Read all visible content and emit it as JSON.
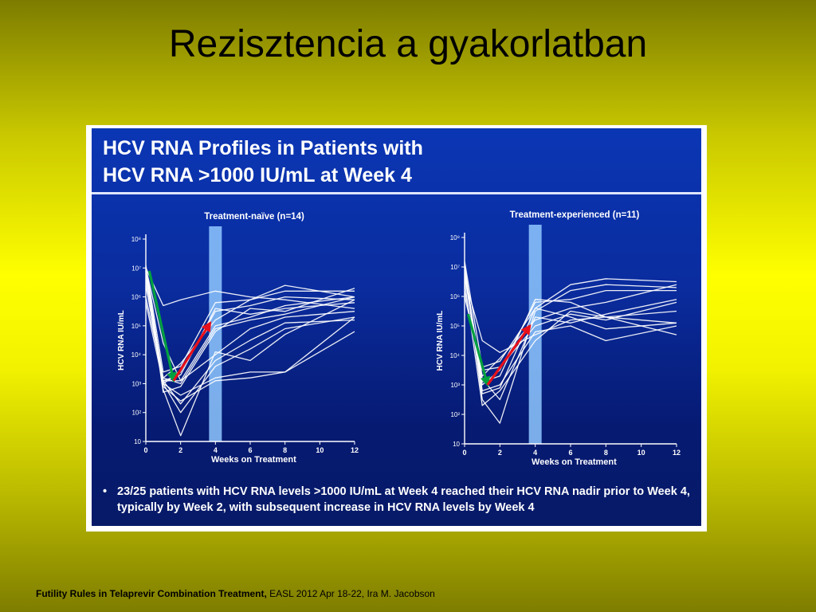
{
  "slide": {
    "title": "Rezisztencia a gyakorlatban",
    "citation_bold": "Futility Rules in Telaprevir Combination Treatment,",
    "citation_rest": " EASL 2012 Apr 18-22, Ira M. Jacobson"
  },
  "figure": {
    "heading_line1": "HCV RNA Profiles in Patients with",
    "heading_line2": "HCV RNA >1000 IU/mL at Week 4",
    "footnote": "23/25 patients with HCV RNA levels >1000 IU/mL at Week 4 reached their HCV RNA nadir prior to Week 4, typically by Week 2, with subsequent increase in HCV RNA levels by Week 4",
    "bullet": "•"
  },
  "colors": {
    "panel_blue": "#0a2c9e",
    "highlight_band": "#8fc8ff",
    "line_white": "#ffffff",
    "nadir_arrow": "#00a040",
    "rise_arrow": "#e8101a"
  },
  "chart_data": [
    {
      "type": "line",
      "title": "Treatment-naïve (n=14)",
      "xlabel": "Weeks on Treatment",
      "ylabel": "HCV RNA IU/mL",
      "x_ticks": [
        "0",
        "2",
        "4",
        "6",
        "8",
        "10",
        "12"
      ],
      "y_ticks": [
        "10",
        "10²",
        "10³",
        "10⁴",
        "10⁵",
        "10⁶",
        "10⁷",
        "10⁸"
      ],
      "xlim": [
        0,
        12
      ],
      "ylim_log10": [
        1,
        8
      ],
      "y_scale": "log",
      "highlight_week": 4,
      "grid": false,
      "arrows": [
        {
          "color": "nadir",
          "from": [
            0.2,
            6.9
          ],
          "to": [
            1.6,
            3.1
          ]
        },
        {
          "color": "rise",
          "from": [
            1.6,
            3.1
          ],
          "to": [
            3.7,
            5.1
          ]
        }
      ],
      "series": [
        {
          "x": [
            0,
            1,
            2,
            4,
            6,
            8,
            12
          ],
          "y": [
            7.0,
            3.0,
            2.0,
            3.6,
            4.2,
            4.9,
            5.3
          ]
        },
        {
          "x": [
            0,
            1,
            2,
            4,
            6,
            8,
            12
          ],
          "y": [
            6.5,
            2.9,
            2.4,
            3.1,
            3.2,
            3.4,
            5.3
          ]
        },
        {
          "x": [
            0,
            1,
            2,
            4,
            6,
            8,
            12
          ],
          "y": [
            6.8,
            3.1,
            3.3,
            5.6,
            5.4,
            5.6,
            5.8
          ]
        },
        {
          "x": [
            0,
            1,
            2,
            4,
            6,
            8,
            12
          ],
          "y": [
            7.1,
            3.4,
            3.6,
            5.8,
            5.9,
            6.2,
            6.2
          ]
        },
        {
          "x": [
            0,
            1,
            2,
            4,
            6,
            8,
            12
          ],
          "y": [
            6.9,
            2.7,
            2.9,
            4.8,
            5.6,
            5.5,
            6.3
          ]
        },
        {
          "x": [
            0,
            1,
            2,
            4,
            6,
            8,
            12
          ],
          "y": [
            6.0,
            3.2,
            3.0,
            4.9,
            5.2,
            5.4,
            6.0
          ]
        },
        {
          "x": [
            0,
            1,
            2,
            4,
            6,
            8,
            12
          ],
          "y": [
            7.0,
            5.7,
            5.9,
            6.2,
            6.0,
            5.9,
            5.6
          ]
        },
        {
          "x": [
            0,
            1,
            2,
            4,
            6,
            8,
            12
          ],
          "y": [
            5.8,
            3.0,
            2.6,
            3.2,
            3.4,
            3.4,
            4.8
          ]
        },
        {
          "x": [
            0,
            1,
            2,
            4,
            6,
            8,
            12
          ],
          "y": [
            6.7,
            3.2,
            3.7,
            5.2,
            5.9,
            6.4,
            6.0
          ]
        },
        {
          "x": [
            0,
            1,
            2,
            4,
            6,
            8,
            12
          ],
          "y": [
            7.0,
            4.4,
            3.1,
            4.0,
            4.9,
            5.3,
            5.5
          ]
        },
        {
          "x": [
            0,
            1,
            2,
            4,
            6,
            8,
            12
          ],
          "y": [
            6.9,
            3.1,
            2.3,
            3.8,
            4.5,
            5.1,
            5.2
          ]
        },
        {
          "x": [
            0,
            1,
            2,
            4,
            6,
            8,
            12
          ],
          "y": [
            6.9,
            2.8,
            1.2,
            4.1,
            3.8,
            4.7,
            5.9
          ]
        },
        {
          "x": [
            0,
            1,
            2,
            4,
            6,
            8,
            12
          ],
          "y": [
            6.4,
            3.1,
            3.1,
            5.0,
            5.3,
            5.7,
            6.0
          ]
        },
        {
          "x": [
            0,
            1,
            2,
            4,
            6,
            8,
            12
          ],
          "y": [
            7.0,
            3.0,
            3.4,
            5.5,
            5.7,
            6.0,
            5.9
          ]
        }
      ]
    },
    {
      "type": "line",
      "title": "Treatment-experienced (n=11)",
      "xlabel": "Weeks on Treatment",
      "ylabel": "HCV RNA IU/mL",
      "x_ticks": [
        "0",
        "2",
        "4",
        "6",
        "8",
        "10",
        "12"
      ],
      "y_ticks": [
        "10",
        "10²",
        "10³",
        "10⁴",
        "10⁵",
        "10⁶",
        "10⁷",
        "10⁸"
      ],
      "xlim": [
        0,
        12
      ],
      "ylim_log10": [
        1,
        8
      ],
      "y_scale": "log",
      "highlight_week": 4,
      "grid": false,
      "arrows": [
        {
          "color": "nadir",
          "from": [
            0.2,
            5.4
          ],
          "to": [
            1.3,
            3.0
          ]
        },
        {
          "color": "rise",
          "from": [
            1.3,
            3.0
          ],
          "to": [
            3.7,
            5.0
          ]
        }
      ],
      "series": [
        {
          "x": [
            0,
            1,
            2,
            4,
            6,
            8,
            12
          ],
          "y": [
            7.2,
            3.6,
            3.8,
            5.6,
            6.4,
            6.6,
            6.5
          ]
        },
        {
          "x": [
            0,
            1,
            2,
            4,
            6,
            8,
            12
          ],
          "y": [
            7.0,
            2.5,
            1.7,
            5.5,
            6.2,
            6.4,
            6.3
          ]
        },
        {
          "x": [
            0,
            1,
            2,
            4,
            6,
            8,
            12
          ],
          "y": [
            6.8,
            3.0,
            3.5,
            5.8,
            5.9,
            6.2,
            6.2
          ]
        },
        {
          "x": [
            0,
            1,
            2,
            4,
            6,
            8,
            12
          ],
          "y": [
            6.5,
            2.3,
            2.8,
            4.5,
            5.5,
            5.3,
            5.5
          ]
        },
        {
          "x": [
            0,
            1,
            2,
            4,
            6,
            8,
            12
          ],
          "y": [
            6.9,
            3.2,
            2.5,
            5.3,
            5.1,
            5.4,
            5.9
          ]
        },
        {
          "x": [
            0,
            1,
            2,
            4,
            6,
            8,
            12
          ],
          "y": [
            6.0,
            3.5,
            3.6,
            5.0,
            5.4,
            5.2,
            5.8
          ]
        },
        {
          "x": [
            0,
            1,
            2,
            4,
            6,
            8,
            12
          ],
          "y": [
            7.1,
            2.8,
            3.0,
            4.8,
            5.0,
            4.5,
            5.0
          ]
        },
        {
          "x": [
            0,
            1,
            2,
            4,
            6,
            8,
            12
          ],
          "y": [
            6.2,
            3.3,
            3.9,
            5.2,
            5.6,
            5.8,
            6.4
          ]
        },
        {
          "x": [
            0,
            1,
            2,
            4,
            6,
            8,
            12
          ],
          "y": [
            6.6,
            4.5,
            4.1,
            4.7,
            5.2,
            5.3,
            4.7
          ]
        },
        {
          "x": [
            0,
            1,
            2,
            4,
            6,
            8,
            12
          ],
          "y": [
            7.0,
            2.7,
            2.9,
            5.6,
            5.3,
            4.9,
            5.1
          ]
        },
        {
          "x": [
            0,
            1,
            2,
            4,
            6,
            8,
            12
          ],
          "y": [
            6.7,
            3.1,
            3.3,
            5.9,
            5.8,
            5.3,
            5.1
          ]
        }
      ]
    }
  ]
}
